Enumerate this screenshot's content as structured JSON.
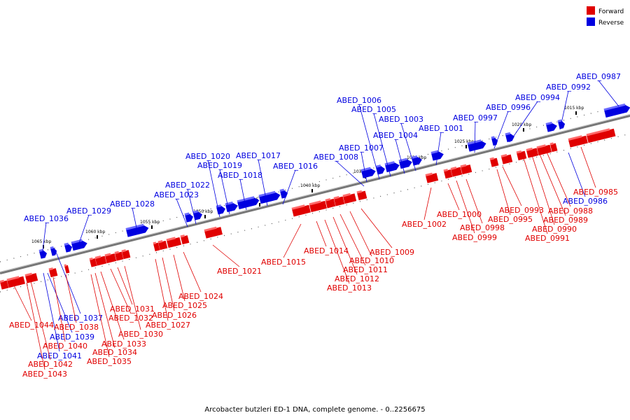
{
  "colors": {
    "forward": "#e00000",
    "forward_top": "#ff6a6a",
    "reverse": "#0000e0",
    "reverse_top": "#6a6aff",
    "axis": "#7a7a7a"
  },
  "legend": {
    "forward_label": "Forward",
    "reverse_label": "Reverse"
  },
  "caption": "Arcobacter butzleri ED-1 DNA, complete genome. - 0..2256675",
  "ticks": [
    "1065 kbp",
    "1060 kbp",
    "1055 kbp",
    "1050 kbp",
    "1045 kbp",
    "1040 kbp",
    "1035 kbp",
    "1030 kbp",
    "1025 kbp",
    "1020 kbp",
    "1015 kbp"
  ],
  "reverse_genes": [
    "ABED_0987",
    "ABED_0992",
    "ABED_0994",
    "ABED_0996",
    "ABED_0997",
    "ABED_1001",
    "ABED_1003",
    "ABED_1004",
    "ABED_1005",
    "ABED_1006",
    "ABED_1007",
    "ABED_1008",
    "ABED_1016",
    "ABED_1017",
    "ABED_1018",
    "ABED_1019",
    "ABED_1020",
    "ABED_1022",
    "ABED_1023",
    "ABED_1028",
    "ABED_1029",
    "ABED_1036",
    "ABED_0986",
    "ABED_1037",
    "ABED_1039",
    "ABED_1041"
  ],
  "forward_genes": [
    "ABED_0985",
    "ABED_0988",
    "ABED_0989",
    "ABED_0990",
    "ABED_0991",
    "ABED_0993",
    "ABED_0995",
    "ABED_0998",
    "ABED_0999",
    "ABED_1000",
    "ABED_1002",
    "ABED_1009",
    "ABED_1010",
    "ABED_1011",
    "ABED_1012",
    "ABED_1013",
    "ABED_1014",
    "ABED_1015",
    "ABED_1021",
    "ABED_1024",
    "ABED_1025",
    "ABED_1026",
    "ABED_1027",
    "ABED_1030",
    "ABED_1031",
    "ABED_1032",
    "ABED_1033",
    "ABED_1034",
    "ABED_1035",
    "ABED_1038",
    "ABED_1040",
    "ABED_1042",
    "ABED_1043",
    "ABED_1044"
  ]
}
